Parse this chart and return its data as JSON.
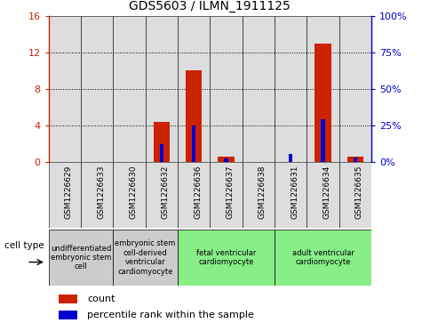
{
  "title": "GDS5603 / ILMN_1911125",
  "samples": [
    "GSM1226629",
    "GSM1226633",
    "GSM1226630",
    "GSM1226632",
    "GSM1226636",
    "GSM1226637",
    "GSM1226638",
    "GSM1226631",
    "GSM1226634",
    "GSM1226635"
  ],
  "counts": [
    0,
    0,
    0,
    4.4,
    10.0,
    0.5,
    0,
    0,
    13.0,
    0.5
  ],
  "percentiles": [
    0,
    0,
    0,
    12,
    25,
    2,
    0,
    5,
    29,
    3
  ],
  "ylim_left": [
    0,
    16
  ],
  "ylim_right": [
    0,
    100
  ],
  "yticks_left": [
    0,
    4,
    8,
    12,
    16
  ],
  "yticks_right": [
    0,
    25,
    50,
    75,
    100
  ],
  "yticklabels_right": [
    "0%",
    "25%",
    "50%",
    "75%",
    "100%"
  ],
  "bar_color": "#CC2200",
  "percentile_color": "#0000CC",
  "grid_color": "#000000",
  "groups": [
    {
      "cols": [
        0,
        1
      ],
      "label": "undifferentiated\nembryonic stem\ncell",
      "color": "#CCCCCC"
    },
    {
      "cols": [
        2,
        3
      ],
      "label": "embryonic stem\ncell-derived\nventricular\ncardiomyocyte",
      "color": "#CCCCCC"
    },
    {
      "cols": [
        4,
        5,
        6
      ],
      "label": "fetal ventricular\ncardiomyocyte",
      "color": "#88EE88"
    },
    {
      "cols": [
        7,
        8,
        9
      ],
      "label": "adult ventricular\ncardiomyocyte",
      "color": "#88EE88"
    }
  ],
  "legend_count_color": "#CC2200",
  "legend_percentile_color": "#0000CC",
  "xlabel_cell_type": "cell type",
  "tick_label_color_left": "#CC2200",
  "tick_label_color_right": "#0000CC",
  "sample_col_color": "#DDDDDD",
  "bar_width": 0.5,
  "percentile_bar_width": 0.12
}
